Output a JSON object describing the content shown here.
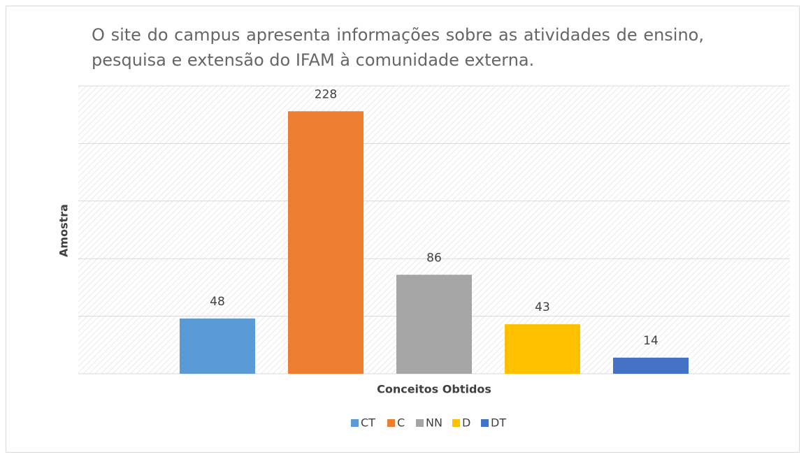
{
  "chart_data": {
    "type": "bar",
    "title": "O site do campus apresenta informações sobre as atividades de ensino, pesquisa e extensão do IFAM à comunidade externa.",
    "xlabel": "Conceitos Obtidos",
    "ylabel": "Amostra",
    "categories": [
      null
    ],
    "series": [
      {
        "name": "CT",
        "color": "#5b9bd5",
        "values": [
          48
        ]
      },
      {
        "name": "C",
        "color": "#ed7d31",
        "values": [
          228
        ]
      },
      {
        "name": "NN",
        "color": "#a5a5a5",
        "values": [
          86
        ]
      },
      {
        "name": "D",
        "color": "#ffc000",
        "values": [
          43
        ]
      },
      {
        "name": "DT",
        "color": "#4472c4",
        "values": [
          14
        ]
      }
    ],
    "ylim": [
      0,
      250
    ],
    "yticks": [
      0,
      50,
      100,
      150,
      200,
      250
    ],
    "grid": true,
    "legend": "bottom"
  }
}
